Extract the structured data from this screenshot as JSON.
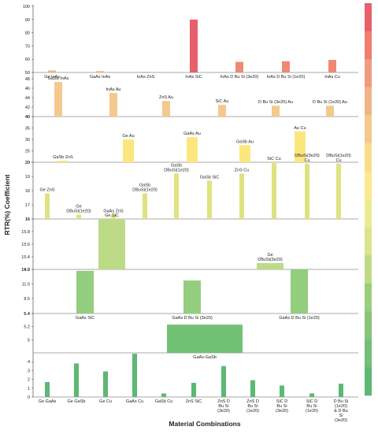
{
  "chart_data": {
    "type": "bar",
    "ylabel": "RTR(%) Coefficient",
    "xlabel": "Material Combinations",
    "legend_colors": [
      "#e8606a",
      "#ee7d72",
      "#f09b80",
      "#f0b488",
      "#f3c98e",
      "#f9dc8c",
      "#fae98f",
      "#ecea91",
      "#dbe38b",
      "#bfd987",
      "#9ccd7d",
      "#88c57a",
      "#72bf78",
      "#5cb873"
    ],
    "panels": [
      {
        "ylim": [
          50,
          100
        ],
        "ticks": [
          "50",
          "60",
          "70",
          "80",
          "90",
          "100"
        ],
        "bars": [
          {
            "label": "Ge InAs",
            "value": 51.5,
            "color": "#f3b57f"
          },
          {
            "label": "GaAs InAs",
            "value": 51,
            "color": "#f3b57f"
          },
          {
            "label": "InAs ZnS",
            "value": 50.6,
            "color": "#f3b57f"
          },
          {
            "label": "InAs SiC",
            "value": 90,
            "color": "#e8606a"
          },
          {
            "label": "InAs D Bu Si (3e20)",
            "value": 58,
            "color": "#ee8a74"
          },
          {
            "label": "InAs D Bu Si (1e20)",
            "value": 58.5,
            "color": "#ee8a74"
          },
          {
            "label": "InAs Cu",
            "value": 59.5,
            "color": "#ee8a74"
          }
        ]
      },
      {
        "ylim": [
          40,
          48
        ],
        "ticks": [
          "40",
          "42",
          "44",
          "46",
          "48"
        ],
        "bars": [
          {
            "label": "GaSb InAs",
            "value": 47.3,
            "color": "#f3c98e"
          },
          {
            "label": "InAs Au",
            "value": 45,
            "color": "#f3c98e"
          },
          {
            "label": "ZnS Au",
            "value": 43.3,
            "color": "#f3c98e"
          },
          {
            "label": "SiC Au",
            "value": 42.5,
            "color": "#f3c98e"
          },
          {
            "label": "D Bu Si (3e20) Au",
            "value": 42.3,
            "color": "#f3c98e"
          },
          {
            "label": "D Bu Si (1e20) Au",
            "value": 42.3,
            "color": "#f3c98e"
          }
        ]
      },
      {
        "ylim": [
          20,
          40
        ],
        "ticks": [
          "20",
          "25",
          "30",
          "35",
          "40"
        ],
        "bars": [
          {
            "label": "GaSb ZnS",
            "value": 20.7,
            "color": "#fbe77e"
          },
          {
            "label": "Ge Au",
            "value": 30,
            "color": "#fbe77e"
          },
          {
            "label": "GaAs Au",
            "value": 31,
            "color": "#fbe77e"
          },
          {
            "label": "GaSb Au",
            "value": 27.5,
            "color": "#fbe77e"
          },
          {
            "label": "Au Cu",
            "value": 33.5,
            "color": "#fbe77e"
          }
        ]
      },
      {
        "ylim": [
          16,
          20
        ],
        "ticks": [
          "16",
          "17",
          "18",
          "19",
          "20"
        ],
        "bars": [
          {
            "label": "Ge ZnS",
            "value": 17.8,
            "color": "#dfe281"
          },
          {
            "label": "Ge DBuSi(1e20)",
            "value": 16.3,
            "color": "#dfe281"
          },
          {
            "label": "GaAs ZnS",
            "value": 16.3,
            "color": "#dfe281"
          },
          {
            "label": "GaSb DBuSi(1e20)",
            "value": 17.8,
            "color": "#dfe281"
          },
          {
            "label": "GaSb DBuSi(1e20)",
            "value": 19.2,
            "color": "#dfe281"
          },
          {
            "label": "GaSb SiC",
            "value": 18.7,
            "color": "#dfe281"
          },
          {
            "label": "ZnS Cu",
            "value": 19.2,
            "color": "#dfe281"
          },
          {
            "label": "SiC Cu",
            "value": 20,
            "color": "#dfe281"
          },
          {
            "label": "DBuSi(3e20) Cu",
            "value": 19.9,
            "color": "#dfe281"
          },
          {
            "label": "DBuSi(1e20) Cu",
            "value": 19.9,
            "color": "#dfe281"
          }
        ]
      },
      {
        "ylim": [
          15.2,
          16
        ],
        "ticks": [
          "15.2",
          "15.4",
          "15.6",
          "15.8",
          "16"
        ],
        "bars": [
          {
            "label": "Ge SiC",
            "value": 16,
            "color": "#bddb86"
          },
          {
            "label": "Ge DBuSi(3e20)",
            "value": 15.3,
            "color": "#bddb86"
          }
        ]
      },
      {
        "ylim": [
          5.4,
          14.5
        ],
        "ticks": [
          "5.4",
          "8.5",
          "11.5",
          "14.5"
        ],
        "bars": [
          {
            "label": "GaAs SiC",
            "value": 14.2,
            "color": "#93cd7e"
          },
          {
            "label": "GaAs D Bu Si (3e20)",
            "value": 12.2,
            "color": "#93cd7e"
          },
          {
            "label": "GaAs D Bu Si (1e20)",
            "value": 14.5,
            "color": "#93cd7e"
          }
        ]
      },
      {
        "ylim": [
          4.8,
          5.4
        ],
        "ticks": [
          "5",
          "5.2",
          "5.4"
        ],
        "bars": [
          {
            "label": "GaAs-GaSb",
            "value": 5.23,
            "color": "#71c174"
          }
        ]
      },
      {
        "ylim": [
          0,
          5
        ],
        "ticks": [
          "0",
          "1",
          "2",
          "3",
          "4"
        ],
        "bars": [
          {
            "label": "Ge GaAs",
            "value": 1.7,
            "color": "#5cb873"
          },
          {
            "label": "Ge GaSb",
            "value": 3.8,
            "color": "#5cb873"
          },
          {
            "label": "Ge Cu",
            "value": 2.9,
            "color": "#5cb873"
          },
          {
            "label": "GaAs Cu",
            "value": 4.9,
            "color": "#5cb873"
          },
          {
            "label": "GaSb Cu",
            "value": 0.4,
            "color": "#5cb873"
          },
          {
            "label": "ZnS SiC",
            "value": 1.6,
            "color": "#5cb873"
          },
          {
            "label": "ZnS D Bu Si (3e20)",
            "value": 3.5,
            "color": "#5cb873"
          },
          {
            "label": "ZnS D Bu Si (1e20)",
            "value": 1.9,
            "color": "#5cb873"
          },
          {
            "label": "SiC D Bu Si (3e20)",
            "value": 1.3,
            "color": "#5cb873"
          },
          {
            "label": "SiC D Bu Si (1e20)",
            "value": 0.4,
            "color": "#5cb873"
          },
          {
            "label": "D Bu Si (1e20) & D Bu Si (3e20)",
            "value": 1.5,
            "color": "#5cb873"
          }
        ]
      }
    ]
  }
}
